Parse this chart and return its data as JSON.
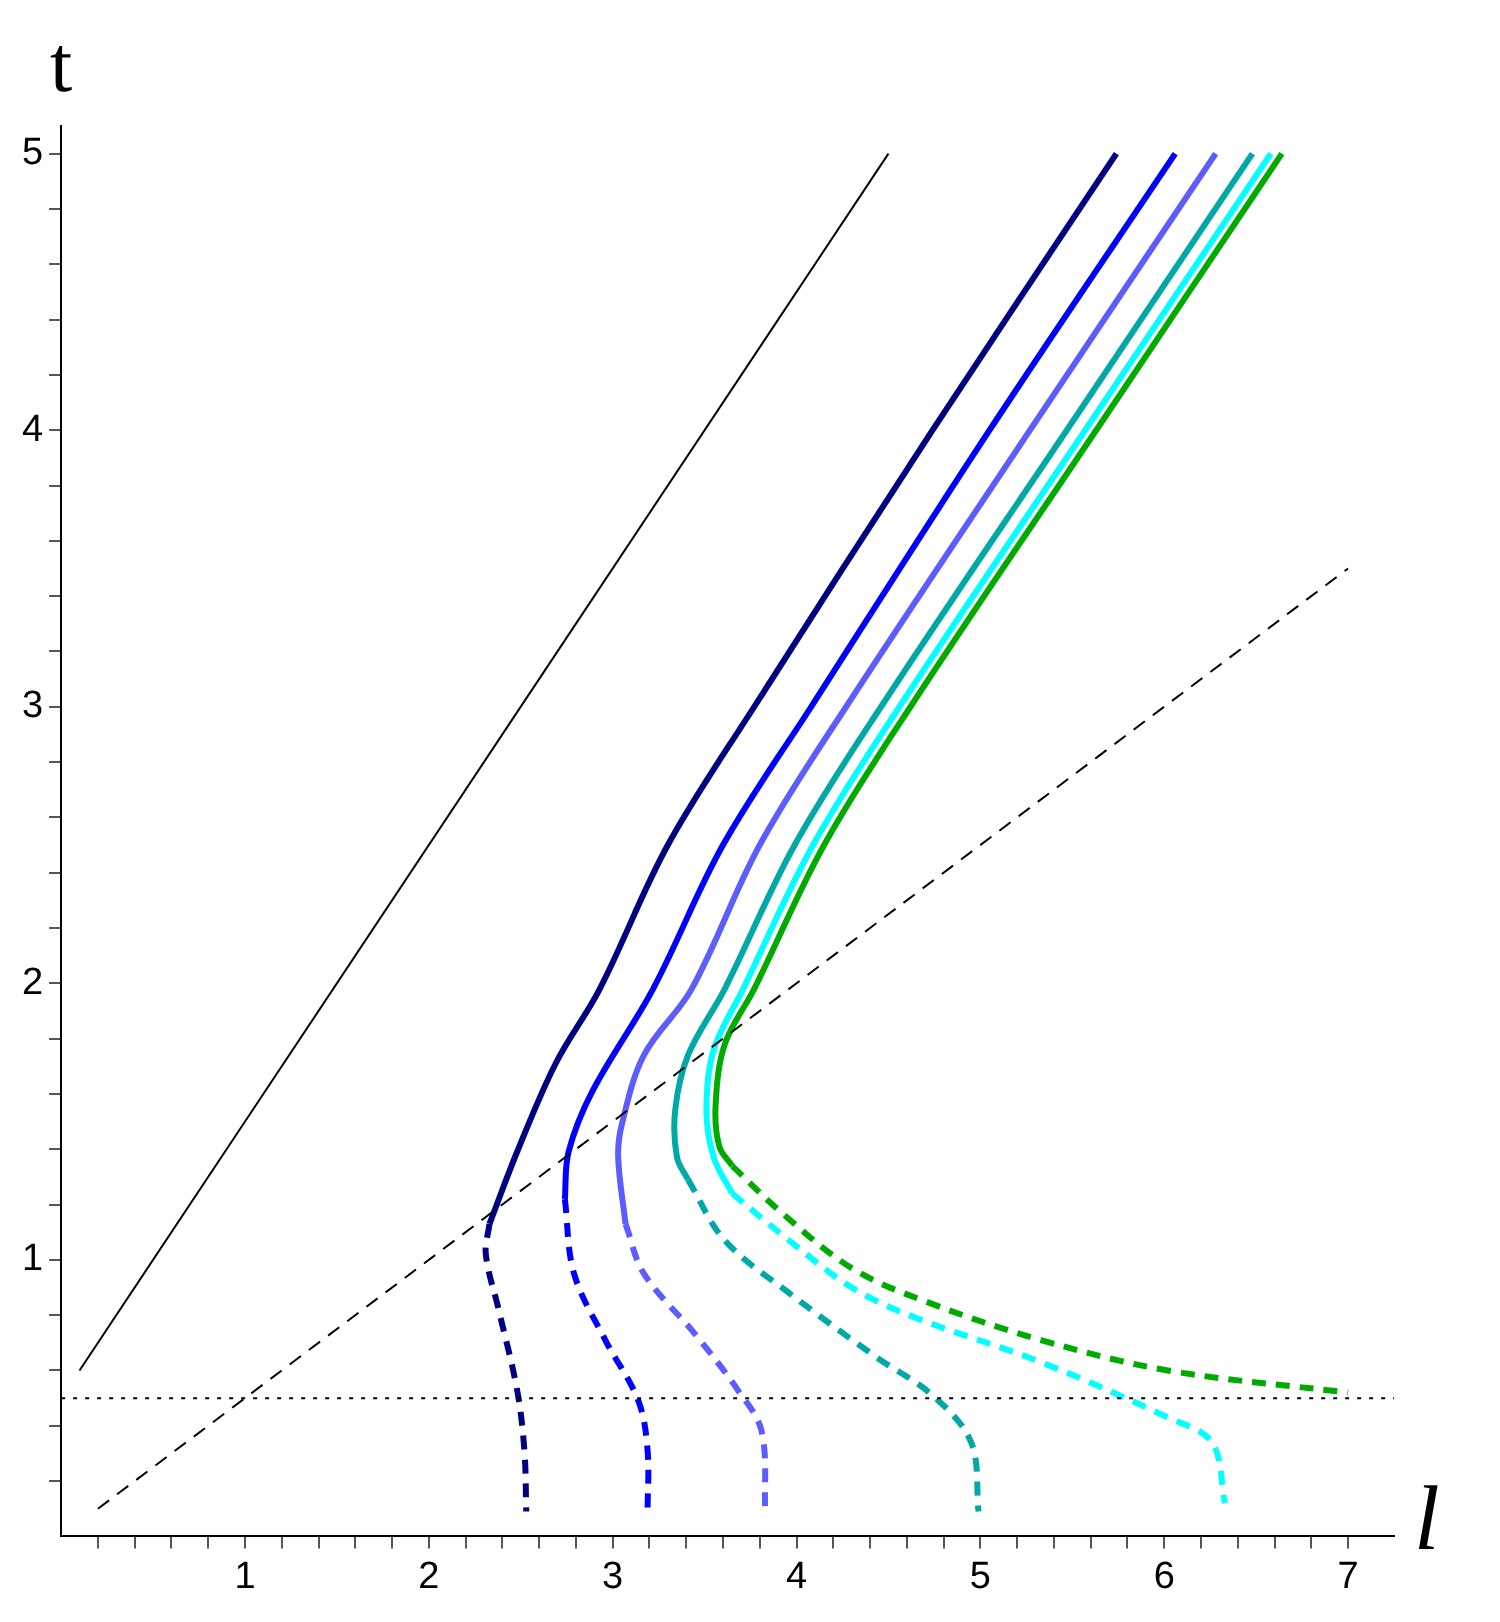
{
  "chart_data": {
    "type": "line",
    "xlabel": "l",
    "ylabel": "t",
    "marker": "none",
    "grid": false,
    "legend": false,
    "xlim": [
      0,
      7.25
    ],
    "ylim": [
      0,
      5.1
    ],
    "xticks": [
      {
        "value": 0.2,
        "label": null
      },
      {
        "value": 0.4,
        "label": null
      },
      {
        "value": 0.6,
        "label": null
      },
      {
        "value": 0.8,
        "label": null
      },
      1,
      {
        "value": 1.2,
        "label": null
      },
      {
        "value": 1.4,
        "label": null
      },
      {
        "value": 1.6,
        "label": null
      },
      {
        "value": 1.8,
        "label": null
      },
      2,
      {
        "value": 2.2,
        "label": null
      },
      {
        "value": 2.4,
        "label": null
      },
      {
        "value": 2.6,
        "label": null
      },
      {
        "value": 2.8,
        "label": null
      },
      3,
      {
        "value": 3.2,
        "label": null
      },
      {
        "value": 3.4,
        "label": null
      },
      {
        "value": 3.6,
        "label": null
      },
      {
        "value": 3.8,
        "label": null
      },
      4,
      {
        "value": 4.2,
        "label": null
      },
      {
        "value": 4.4,
        "label": null
      },
      {
        "value": 4.6,
        "label": null
      },
      {
        "value": 4.8,
        "label": null
      },
      5,
      {
        "value": 5.2,
        "label": null
      },
      {
        "value": 5.4,
        "label": null
      },
      {
        "value": 5.6,
        "label": null
      },
      {
        "value": 5.8,
        "label": null
      },
      6,
      {
        "value": 6.2,
        "label": null
      },
      {
        "value": 6.4,
        "label": null
      },
      {
        "value": 6.6,
        "label": null
      },
      {
        "value": 6.8,
        "label": null
      },
      7
    ],
    "yticks": [
      {
        "value": 0.2,
        "label": null
      },
      {
        "value": 0.4,
        "label": null
      },
      {
        "value": 0.6,
        "label": null
      },
      {
        "value": 0.8,
        "label": null
      },
      1,
      {
        "value": 1.2,
        "label": null
      },
      {
        "value": 1.4,
        "label": null
      },
      {
        "value": 1.6,
        "label": null
      },
      {
        "value": 1.8,
        "label": null
      },
      2,
      {
        "value": 2.2,
        "label": null
      },
      {
        "value": 2.4,
        "label": null
      },
      {
        "value": 2.6,
        "label": null
      },
      {
        "value": 2.8,
        "label": null
      },
      3,
      {
        "value": 3.2,
        "label": null
      },
      {
        "value": 3.4,
        "label": null
      },
      {
        "value": 3.6,
        "label": null
      },
      {
        "value": 3.8,
        "label": null
      },
      4,
      {
        "value": 4.2,
        "label": null
      },
      {
        "value": 4.4,
        "label": null
      },
      {
        "value": 4.6,
        "label": null
      },
      {
        "value": 4.8,
        "label": null
      },
      5
    ],
    "ref_lines": [
      {
        "axis": "y",
        "value": 0.5,
        "color": "#000000",
        "line_style": "dotted"
      }
    ],
    "series": [
      {
        "color": "#000000",
        "line_style": "solid",
        "x": [
          0.1,
          4.5
        ],
        "values": [
          0.6,
          5
        ]
      },
      {
        "color": "#000000",
        "line_style": "dashed",
        "x": [
          0.2,
          7
        ],
        "values": [
          0.1,
          3.5
        ]
      },
      {
        "color": "#000080",
        "line_style": "solid",
        "x": [
          5.74,
          4.74,
          3.77,
          3.3,
          2.93,
          2.69,
          2.48,
          2.33
        ],
        "values": [
          5,
          4,
          3,
          2.5,
          1.98,
          1.71,
          1.39,
          1.13
        ]
      },
      {
        "color": "#000080",
        "line_style": "dashed",
        "x": [
          2.33,
          2.31,
          2.38,
          2.48,
          2.52,
          2.53
        ],
        "values": [
          1.13,
          1.02,
          0.82,
          0.53,
          0.31,
          0.09
        ]
      },
      {
        "color": "#0000ff",
        "line_style": "solid",
        "x": [
          6.06,
          5.05,
          4.08,
          3.6,
          3.22,
          2.89,
          2.76,
          2.74
        ],
        "values": [
          5,
          4,
          3,
          2.5,
          1.98,
          1.61,
          1.39,
          1.22
        ]
      },
      {
        "color": "#0000ff",
        "line_style": "dashed",
        "x": [
          2.74,
          2.79,
          2.96,
          3.14,
          3.19,
          3.19
        ],
        "values": [
          1.22,
          0.95,
          0.71,
          0.49,
          0.31,
          0.09
        ]
      },
      {
        "color": "#5c5cff",
        "line_style": "solid",
        "x": [
          6.28,
          5.27,
          4.27,
          3.8,
          3.43,
          3.17,
          3.05,
          3.03,
          3.07
        ],
        "values": [
          5,
          4,
          3,
          2.5,
          1.98,
          1.74,
          1.49,
          1.37,
          1.13
        ]
      },
      {
        "color": "#5c5cff",
        "line_style": "dashed",
        "x": [
          3.07,
          3.17,
          3.45,
          3.68,
          3.81,
          3.83
        ],
        "values": [
          1.13,
          0.95,
          0.73,
          0.53,
          0.38,
          0.09
        ]
      },
      {
        "color": "#00a8a8",
        "line_style": "solid",
        "x": [
          6.48,
          5.47,
          4.46,
          3.99,
          3.61,
          3.41,
          3.34,
          3.35,
          3.41
        ],
        "values": [
          5,
          4,
          3,
          2.5,
          1.98,
          1.74,
          1.54,
          1.37,
          1.29
        ]
      },
      {
        "color": "#00a8a8",
        "line_style": "dashed",
        "x": [
          3.41,
          3.61,
          3.96,
          4.43,
          4.74,
          4.95,
          4.99
        ],
        "values": [
          1.29,
          1.07,
          0.88,
          0.65,
          0.51,
          0.34,
          0.09
        ]
      },
      {
        "color": "#00ffff",
        "line_style": "solid",
        "x": [
          6.58,
          5.57,
          4.56,
          4.09,
          3.71,
          3.55,
          3.51,
          3.55,
          3.65
        ],
        "values": [
          5,
          4,
          3,
          2.5,
          1.98,
          1.76,
          1.54,
          1.37,
          1.24
        ]
      },
      {
        "color": "#00ffff",
        "line_style": "dashed",
        "x": [
          3.65,
          3.96,
          4.3,
          4.65,
          5.33,
          6.02,
          6.26,
          6.33
        ],
        "values": [
          1.24,
          1.07,
          0.9,
          0.79,
          0.63,
          0.43,
          0.34,
          0.12
        ]
      },
      {
        "color": "#00aa00",
        "line_style": "solid",
        "x": [
          6.64,
          5.63,
          4.62,
          4.15,
          3.77,
          3.61,
          3.56,
          3.58,
          3.65
        ],
        "values": [
          5,
          4,
          3,
          2.5,
          1.98,
          1.78,
          1.56,
          1.41,
          1.34
        ]
      },
      {
        "color": "#00aa00",
        "line_style": "dashed",
        "x": [
          3.65,
          3.92,
          4.3,
          4.7,
          5.33,
          6.02,
          7
        ],
        "values": [
          1.34,
          1.17,
          0.97,
          0.85,
          0.71,
          0.6,
          0.52
        ]
      }
    ]
  }
}
